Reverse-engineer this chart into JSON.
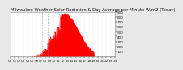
{
  "title": "Milwaukee Weather Solar Radiation & Day Average per Minute W/m2 (Today)",
  "bg_color": "#e8e8e8",
  "plot_bg": "#ffffff",
  "fill_color": "#ff0000",
  "blue_line_x": 110,
  "dashed_line1_x": 440,
  "dashed_line2_x": 510,
  "ylim": [
    0,
    900
  ],
  "xlim": [
    0,
    1440
  ],
  "yticks": [
    100,
    200,
    300,
    400,
    500,
    600,
    700,
    800,
    900
  ],
  "xtick_interval": 60,
  "title_fontsize": 3.8,
  "tick_fontsize": 3.0
}
